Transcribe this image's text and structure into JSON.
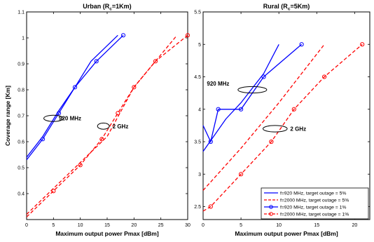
{
  "chart_data": [
    {
      "type": "line",
      "title_main": "Urban (R",
      "title_sub": "c",
      "title_tail": "=1Km)",
      "xlabel": "Maximum output power Pmax [dBm]",
      "ylabel": "Coverage range [Km]",
      "xlim": [
        0,
        30
      ],
      "ylim": [
        0.3,
        1.1
      ],
      "x_ticks": [
        "0",
        "5",
        "10",
        "15",
        "20",
        "25",
        "30"
      ],
      "y_ticks": [
        "0.4",
        "0.5",
        "0.6",
        "0.7",
        "0.8",
        "0.9",
        "1",
        "1.1"
      ],
      "grid": false,
      "series": [
        {
          "color": "#0000ff",
          "dash": false,
          "marker": false,
          "points": [
            [
              0,
              0.54
            ],
            [
              3,
              0.62
            ],
            [
              6,
              0.72
            ],
            [
              9,
              0.81
            ],
            [
              12,
              0.91
            ],
            [
              17,
              1.01
            ]
          ]
        },
        {
          "color": "#ff0000",
          "dash": true,
          "marker": false,
          "points": [
            [
              0,
              0.32
            ],
            [
              5,
              0.42
            ],
            [
              10,
              0.52
            ],
            [
              15,
              0.62
            ],
            [
              20,
              0.81
            ],
            [
              24,
              0.91
            ],
            [
              28,
              1.01
            ]
          ]
        },
        {
          "color": "#0000ff",
          "dash": false,
          "marker": true,
          "points": [
            [
              0,
              0.53
            ],
            [
              3,
              0.61
            ],
            [
              6,
              0.71
            ],
            [
              9,
              0.81
            ],
            [
              13,
              0.91
            ],
            [
              18,
              1.01
            ]
          ]
        },
        {
          "color": "#ff0000",
          "dash": true,
          "marker": true,
          "points": [
            [
              0,
              0.31
            ],
            [
              5,
              0.41
            ],
            [
              10,
              0.51
            ],
            [
              14,
              0.61
            ],
            [
              17,
              0.71
            ],
            [
              20,
              0.81
            ],
            [
              24,
              0.91
            ],
            [
              30,
              1.01
            ]
          ]
        }
      ],
      "annotations": [
        {
          "text": "920 MHz",
          "x": 6,
          "y": 0.69,
          "ex": 5,
          "ey": 0.69,
          "erx": 1.8,
          "ery": 0.012
        },
        {
          "text": "2 GHz",
          "x": 16,
          "y": 0.66,
          "ex": 14.3,
          "ey": 0.66,
          "erx": 1.1,
          "ery": 0.012
        }
      ]
    },
    {
      "type": "line",
      "title_main": "Rural (R",
      "title_sub": "c",
      "title_tail": "=5Km)",
      "xlabel": "Maximum output power Pmax [dBm]",
      "ylabel": "",
      "xlim": [
        0,
        22
      ],
      "ylim": [
        2.3,
        5.5
      ],
      "x_ticks": [
        "0",
        "5",
        "10",
        "15",
        "20"
      ],
      "y_ticks": [
        "2.5",
        "3",
        "3.5",
        "4",
        "4.5",
        "5",
        "5.5"
      ],
      "grid": false,
      "series": [
        {
          "color": "#0000ff",
          "dash": false,
          "marker": false,
          "points": [
            [
              0,
              3.35
            ],
            [
              3,
              3.85
            ],
            [
              5,
              4.1
            ],
            [
              8,
              4.55
            ],
            [
              10,
              5.0
            ]
          ]
        },
        {
          "color": "#ff0000",
          "dash": true,
          "marker": false,
          "points": [
            [
              0,
              2.75
            ],
            [
              5,
              3.4
            ],
            [
              10,
              4.1
            ],
            [
              13,
              4.55
            ],
            [
              16,
              5.0
            ]
          ]
        },
        {
          "color": "#0000ff",
          "dash": false,
          "marker": true,
          "points": [
            [
              0,
              3.75
            ],
            [
              1,
              3.5
            ],
            [
              2,
              4.0
            ],
            [
              5,
              4.0
            ],
            [
              8,
              4.5
            ],
            [
              13,
              5.0
            ]
          ]
        },
        {
          "color": "#ff0000",
          "dash": true,
          "marker": true,
          "points": [
            [
              0,
              2.43
            ],
            [
              1,
              2.5
            ],
            [
              5,
              3.0
            ],
            [
              9,
              3.5
            ],
            [
              12,
              4.0
            ],
            [
              16,
              4.5
            ],
            [
              21,
              5.0
            ]
          ]
        }
      ],
      "annotations": [
        {
          "text": "920 MHz",
          "x": 0.5,
          "y": 4.4,
          "ex": 6.5,
          "ey": 4.3,
          "erx": 1.9,
          "ery": 0.05
        },
        {
          "text": "2 GHz",
          "x": 11.5,
          "y": 3.7,
          "ex": 9.5,
          "ey": 3.7,
          "erx": 1.6,
          "ery": 0.05
        }
      ],
      "legend": {
        "placement": "bottom-right",
        "entries": [
          {
            "label": "f=920 MHz, target outage = 5%",
            "color": "#0000ff",
            "dash": false,
            "marker": false
          },
          {
            "label": "f=2000 MHz, target outage = 5%",
            "color": "#ff0000",
            "dash": true,
            "marker": false
          },
          {
            "label": "f=920 MHz, target outage = 1%",
            "color": "#0000ff",
            "dash": false,
            "marker": true
          },
          {
            "label": "f=2000 MHz, target outage = 1%",
            "color": "#ff0000",
            "dash": true,
            "marker": true
          }
        ]
      }
    }
  ]
}
